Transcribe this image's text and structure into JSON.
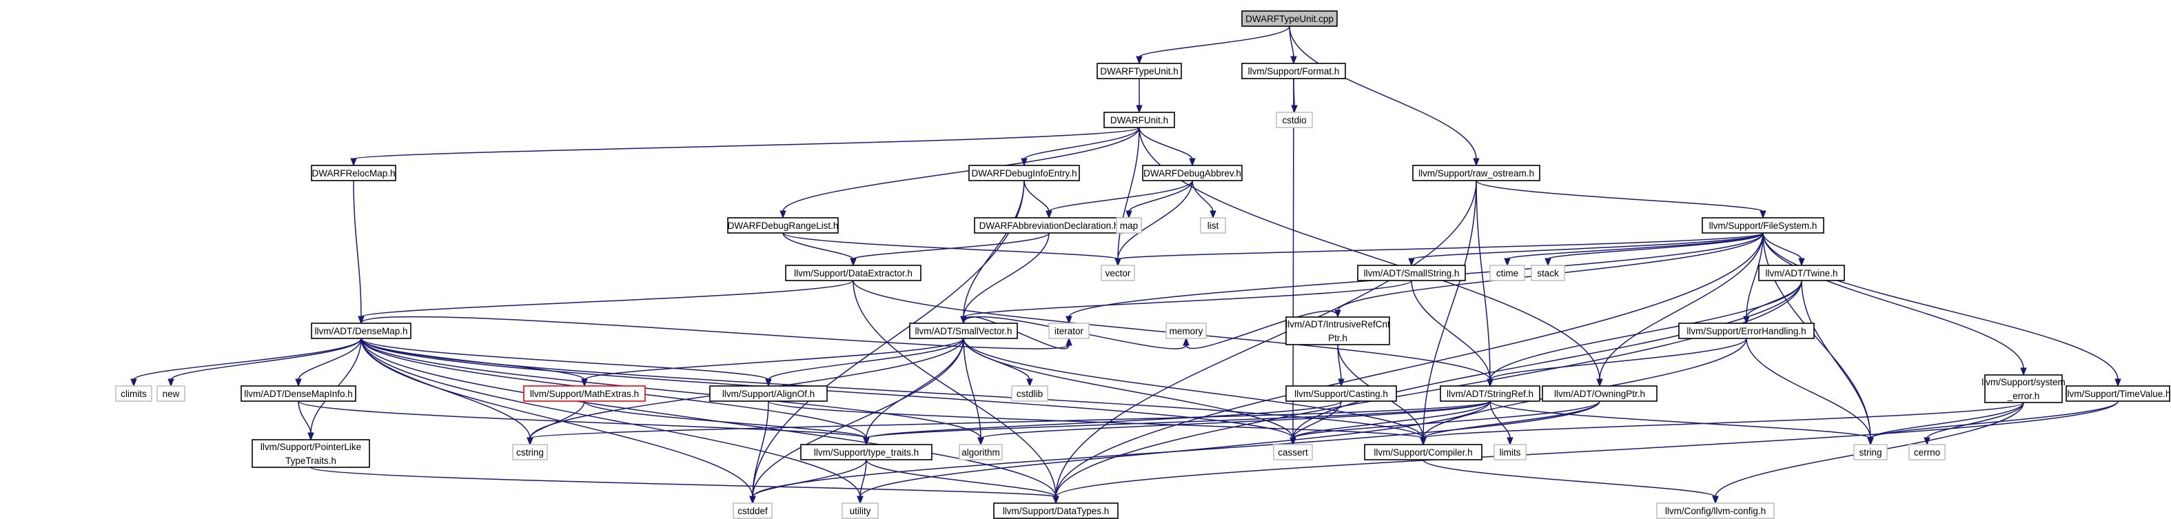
{
  "diagram": {
    "title": "DWARFTypeUnit.cpp",
    "nodes": [
      {
        "id": "root",
        "label": [
          "DWARFTypeUnit.cpp"
        ],
        "kind": "current"
      },
      {
        "id": "dwarftypeunit_h",
        "label": [
          "DWARFTypeUnit.h"
        ],
        "kind": "header"
      },
      {
        "id": "format_h",
        "label": [
          "llvm/Support/Format.h"
        ],
        "kind": "header"
      },
      {
        "id": "raw_ostream_h",
        "label": [
          "llvm/Support/raw_ostream.h"
        ],
        "kind": "header"
      },
      {
        "id": "dwarfunit_h",
        "label": [
          "DWARFUnit.h"
        ],
        "kind": "header"
      },
      {
        "id": "cstdio",
        "label": [
          "cstdio"
        ],
        "kind": "system"
      },
      {
        "id": "relocmap_h",
        "label": [
          "DWARFRelocMap.h"
        ],
        "kind": "header"
      },
      {
        "id": "debuginfoentry_h",
        "label": [
          "DWARFDebugInfoEntry.h"
        ],
        "kind": "header"
      },
      {
        "id": "debugabbrev_h",
        "label": [
          "DWARFDebugAbbrev.h"
        ],
        "kind": "header"
      },
      {
        "id": "filesystem_h",
        "label": [
          "llvm/Support/FileSystem.h"
        ],
        "kind": "header"
      },
      {
        "id": "debugrangelist_h",
        "label": [
          "DWARFDebugRangeList.h"
        ],
        "kind": "header"
      },
      {
        "id": "abbrevdecl_h",
        "label": [
          "DWARFAbbreviationDeclaration.h"
        ],
        "kind": "header"
      },
      {
        "id": "map",
        "label": [
          "map"
        ],
        "kind": "system"
      },
      {
        "id": "list",
        "label": [
          "list"
        ],
        "kind": "system"
      },
      {
        "id": "vector",
        "label": [
          "vector"
        ],
        "kind": "system"
      },
      {
        "id": "dataextractor_h",
        "label": [
          "llvm/Support/DataExtractor.h"
        ],
        "kind": "header"
      },
      {
        "id": "smallstring_h",
        "label": [
          "llvm/ADT/SmallString.h"
        ],
        "kind": "header"
      },
      {
        "id": "ctime",
        "label": [
          "ctime"
        ],
        "kind": "system"
      },
      {
        "id": "stack",
        "label": [
          "stack"
        ],
        "kind": "system"
      },
      {
        "id": "twine_h",
        "label": [
          "llvm/ADT/Twine.h"
        ],
        "kind": "header"
      },
      {
        "id": "densemap_h",
        "label": [
          "llvm/ADT/DenseMap.h"
        ],
        "kind": "header"
      },
      {
        "id": "smallvector_h",
        "label": [
          "llvm/ADT/SmallVector.h"
        ],
        "kind": "header"
      },
      {
        "id": "intrusiverefcntptr_h",
        "label": [
          "llvm/ADT/IntrusiveRefCnt",
          "Ptr.h"
        ],
        "kind": "header"
      },
      {
        "id": "errorhandling_h",
        "label": [
          "llvm/Support/ErrorHandling.h"
        ],
        "kind": "header"
      },
      {
        "id": "climits",
        "label": [
          "climits"
        ],
        "kind": "system"
      },
      {
        "id": "new",
        "label": [
          "new"
        ],
        "kind": "system"
      },
      {
        "id": "densemapinfo_h",
        "label": [
          "llvm/ADT/DenseMapInfo.h"
        ],
        "kind": "header"
      },
      {
        "id": "mathextras_h",
        "label": [
          "llvm/Support/MathExtras.h"
        ],
        "kind": "undocumented"
      },
      {
        "id": "alignof_h",
        "label": [
          "llvm/Support/AlignOf.h"
        ],
        "kind": "header"
      },
      {
        "id": "cstdlib",
        "label": [
          "cstdlib"
        ],
        "kind": "system"
      },
      {
        "id": "iterator",
        "label": [
          "iterator"
        ],
        "kind": "system"
      },
      {
        "id": "memory",
        "label": [
          "memory"
        ],
        "kind": "system"
      },
      {
        "id": "casting_h",
        "label": [
          "llvm/Support/Casting.h"
        ],
        "kind": "header"
      },
      {
        "id": "stringref_h",
        "label": [
          "llvm/ADT/StringRef.h"
        ],
        "kind": "header"
      },
      {
        "id": "owningptr_h",
        "label": [
          "llvm/ADT/OwningPtr.h"
        ],
        "kind": "header"
      },
      {
        "id": "system_error_h",
        "label": [
          "llvm/Support/system",
          "_error.h"
        ],
        "kind": "header"
      },
      {
        "id": "timevalue_h",
        "label": [
          "llvm/Support/TimeValue.h"
        ],
        "kind": "header"
      },
      {
        "id": "pointerliketypetraits_h",
        "label": [
          "llvm/Support/PointerLike",
          "TypeTraits.h"
        ],
        "kind": "header"
      },
      {
        "id": "cstring",
        "label": [
          "cstring"
        ],
        "kind": "system"
      },
      {
        "id": "type_traits_h",
        "label": [
          "llvm/Support/type_traits.h"
        ],
        "kind": "header"
      },
      {
        "id": "algorithm",
        "label": [
          "algorithm"
        ],
        "kind": "system"
      },
      {
        "id": "cassert",
        "label": [
          "cassert"
        ],
        "kind": "system"
      },
      {
        "id": "compiler_h",
        "label": [
          "llvm/Support/Compiler.h"
        ],
        "kind": "header"
      },
      {
        "id": "limits",
        "label": [
          "limits"
        ],
        "kind": "system"
      },
      {
        "id": "string",
        "label": [
          "string"
        ],
        "kind": "system"
      },
      {
        "id": "cerrno",
        "label": [
          "cerrno"
        ],
        "kind": "system"
      },
      {
        "id": "cstddef",
        "label": [
          "cstddef"
        ],
        "kind": "system"
      },
      {
        "id": "utility",
        "label": [
          "utility"
        ],
        "kind": "system"
      },
      {
        "id": "datatypes_h",
        "label": [
          "llvm/Support/DataTypes.h"
        ],
        "kind": "header"
      },
      {
        "id": "llvm_config_h",
        "label": [
          "llvm/Config/llvm-config.h"
        ],
        "kind": "system"
      }
    ],
    "edges": [
      [
        "root",
        "dwarftypeunit_h"
      ],
      [
        "root",
        "format_h"
      ],
      [
        "root",
        "raw_ostream_h"
      ],
      [
        "dwarftypeunit_h",
        "dwarfunit_h"
      ],
      [
        "format_h",
        "cstdio"
      ],
      [
        "format_h",
        "cassert"
      ],
      [
        "raw_ostream_h",
        "filesystem_h"
      ],
      [
        "raw_ostream_h",
        "stringref_h"
      ],
      [
        "raw_ostream_h",
        "compiler_h"
      ],
      [
        "raw_ostream_h",
        "datatypes_h"
      ],
      [
        "dwarfunit_h",
        "relocmap_h"
      ],
      [
        "dwarfunit_h",
        "debuginfoentry_h"
      ],
      [
        "dwarfunit_h",
        "debugabbrev_h"
      ],
      [
        "dwarfunit_h",
        "debugrangelist_h"
      ],
      [
        "dwarfunit_h",
        "vector"
      ],
      [
        "dwarfunit_h",
        "owningptr_h"
      ],
      [
        "relocmap_h",
        "densemap_h"
      ],
      [
        "debuginfoentry_h",
        "abbrevdecl_h"
      ],
      [
        "debuginfoentry_h",
        "smallvector_h"
      ],
      [
        "debuginfoentry_h",
        "cstddef"
      ],
      [
        "debugabbrev_h",
        "abbrevdecl_h"
      ],
      [
        "debugabbrev_h",
        "map"
      ],
      [
        "debugabbrev_h",
        "list"
      ],
      [
        "debugabbrev_h",
        "vector"
      ],
      [
        "debugrangelist_h",
        "dataextractor_h"
      ],
      [
        "debugrangelist_h",
        "vector"
      ],
      [
        "abbrevdecl_h",
        "dataextractor_h"
      ],
      [
        "abbrevdecl_h",
        "smallvector_h"
      ],
      [
        "dataextractor_h",
        "densemap_h"
      ],
      [
        "dataextractor_h",
        "stringref_h"
      ],
      [
        "dataextractor_h",
        "datatypes_h"
      ],
      [
        "filesystem_h",
        "vector"
      ],
      [
        "filesystem_h",
        "smallstring_h"
      ],
      [
        "filesystem_h",
        "ctime"
      ],
      [
        "filesystem_h",
        "stack"
      ],
      [
        "filesystem_h",
        "twine_h"
      ],
      [
        "filesystem_h",
        "intrusiverefcntptr_h"
      ],
      [
        "filesystem_h",
        "errorhandling_h"
      ],
      [
        "filesystem_h",
        "owningptr_h"
      ],
      [
        "filesystem_h",
        "system_error_h"
      ],
      [
        "filesystem_h",
        "timevalue_h"
      ],
      [
        "filesystem_h",
        "iterator"
      ],
      [
        "filesystem_h",
        "string"
      ],
      [
        "filesystem_h",
        "datatypes_h"
      ],
      [
        "smallstring_h",
        "smallvector_h"
      ],
      [
        "smallstring_h",
        "stringref_h"
      ],
      [
        "twine_h",
        "stringref_h"
      ],
      [
        "twine_h",
        "errorhandling_h"
      ],
      [
        "twine_h",
        "string"
      ],
      [
        "twine_h",
        "cassert"
      ],
      [
        "twine_h",
        "datatypes_h"
      ],
      [
        "densemap_h",
        "climits"
      ],
      [
        "densemap_h",
        "new"
      ],
      [
        "densemap_h",
        "densemapinfo_h"
      ],
      [
        "densemap_h",
        "mathextras_h"
      ],
      [
        "densemap_h",
        "alignof_h"
      ],
      [
        "densemap_h",
        "pointerliketypetraits_h"
      ],
      [
        "densemap_h",
        "iterator"
      ],
      [
        "densemap_h",
        "cstring"
      ],
      [
        "densemap_h",
        "type_traits_h"
      ],
      [
        "densemap_h",
        "algorithm"
      ],
      [
        "densemap_h",
        "cassert"
      ],
      [
        "densemap_h",
        "compiler_h"
      ],
      [
        "densemap_h",
        "cstddef"
      ],
      [
        "densemap_h",
        "utility"
      ],
      [
        "densemap_h",
        "datatypes_h"
      ],
      [
        "smallvector_h",
        "mathextras_h"
      ],
      [
        "smallvector_h",
        "alignof_h"
      ],
      [
        "smallvector_h",
        "cstdlib"
      ],
      [
        "smallvector_h",
        "iterator"
      ],
      [
        "smallvector_h",
        "memory"
      ],
      [
        "smallvector_h",
        "cstring"
      ],
      [
        "smallvector_h",
        "type_traits_h"
      ],
      [
        "smallvector_h",
        "algorithm"
      ],
      [
        "smallvector_h",
        "cassert"
      ],
      [
        "smallvector_h",
        "compiler_h"
      ],
      [
        "smallvector_h",
        "cstddef"
      ],
      [
        "intrusiverefcntptr_h",
        "memory"
      ],
      [
        "intrusiverefcntptr_h",
        "casting_h"
      ],
      [
        "intrusiverefcntptr_h",
        "compiler_h"
      ],
      [
        "errorhandling_h",
        "stringref_h"
      ],
      [
        "errorhandling_h",
        "compiler_h"
      ],
      [
        "errorhandling_h",
        "string"
      ],
      [
        "densemapinfo_h",
        "pointerliketypetraits_h"
      ],
      [
        "densemapinfo_h",
        "type_traits_h"
      ],
      [
        "mathextras_h",
        "cstring"
      ],
      [
        "mathextras_h",
        "type_traits_h"
      ],
      [
        "alignof_h",
        "compiler_h"
      ],
      [
        "alignof_h",
        "cstddef"
      ],
      [
        "casting_h",
        "type_traits_h"
      ],
      [
        "casting_h",
        "cassert"
      ],
      [
        "stringref_h",
        "type_traits_h"
      ],
      [
        "stringref_h",
        "algorithm"
      ],
      [
        "stringref_h",
        "cassert"
      ],
      [
        "stringref_h",
        "cstring"
      ],
      [
        "stringref_h",
        "limits"
      ],
      [
        "stringref_h",
        "string"
      ],
      [
        "stringref_h",
        "utility"
      ],
      [
        "owningptr_h",
        "compiler_h"
      ],
      [
        "owningptr_h",
        "cassert"
      ],
      [
        "owningptr_h",
        "cstddef"
      ],
      [
        "system_error_h",
        "compiler_h"
      ],
      [
        "system_error_h",
        "cerrno"
      ],
      [
        "system_error_h",
        "string"
      ],
      [
        "system_error_h",
        "llvm_config_h"
      ],
      [
        "timevalue_h",
        "string"
      ],
      [
        "timevalue_h",
        "datatypes_h"
      ],
      [
        "pointerliketypetraits_h",
        "datatypes_h"
      ],
      [
        "type_traits_h",
        "cstddef"
      ],
      [
        "type_traits_h",
        "utility"
      ],
      [
        "type_traits_h",
        "datatypes_h"
      ],
      [
        "compiler_h",
        "llvm_config_h"
      ]
    ]
  }
}
